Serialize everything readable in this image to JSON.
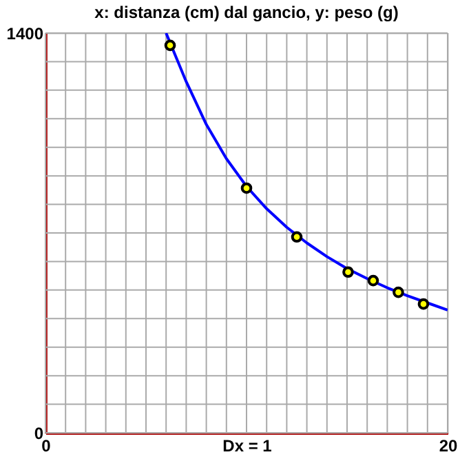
{
  "chart_data": {
    "type": "scatter",
    "title": "x:  distanza (cm) dal gancio,   y:  peso (g)",
    "xlabel": "Dx = 1",
    "xlim": [
      0,
      20
    ],
    "ylim": [
      0,
      1400
    ],
    "xticks": [
      0,
      {
        "value": 1,
        "label": null
      },
      {
        "value": 2,
        "label": null
      },
      {
        "value": 3,
        "label": null
      },
      {
        "value": 4,
        "label": null
      },
      {
        "value": 5,
        "label": null
      },
      {
        "value": 6,
        "label": null
      },
      {
        "value": 7,
        "label": null
      },
      {
        "value": 8,
        "label": null
      },
      {
        "value": 9,
        "label": null
      },
      {
        "value": 10,
        "label": null
      },
      {
        "value": 11,
        "label": null
      },
      {
        "value": 12,
        "label": null
      },
      {
        "value": 13,
        "label": null
      },
      {
        "value": 14,
        "label": null
      },
      {
        "value": 15,
        "label": null
      },
      {
        "value": 16,
        "label": null
      },
      {
        "value": 17,
        "label": null
      },
      {
        "value": 18,
        "label": null
      },
      {
        "value": 19,
        "label": null
      },
      20
    ],
    "yticks": [
      0,
      {
        "value": 100,
        "label": null
      },
      {
        "value": 200,
        "label": null
      },
      {
        "value": 300,
        "label": null
      },
      {
        "value": 400,
        "label": null
      },
      {
        "value": 500,
        "label": null
      },
      {
        "value": 600,
        "label": null
      },
      {
        "value": 700,
        "label": null
      },
      {
        "value": 800,
        "label": null
      },
      {
        "value": 900,
        "label": null
      },
      {
        "value": 1000,
        "label": null
      },
      {
        "value": 1100,
        "label": null
      },
      {
        "value": 1200,
        "label": null
      },
      {
        "value": 1300,
        "label": null
      },
      1400
    ],
    "grid": true,
    "series": [
      {
        "type": "line",
        "color": "#0000ff",
        "marker": "none",
        "line_style": "solid",
        "x": [
          6.0,
          7,
          8,
          9,
          10,
          11,
          12,
          13,
          14,
          15,
          16,
          17,
          18,
          19,
          20
        ],
        "values": [
          1400,
          1230,
          1080,
          960,
          863,
          785,
          720,
          665,
          617,
          575,
          540,
          508,
          480,
          455,
          430
        ]
      },
      {
        "type": "scatter",
        "color": "#ffff00",
        "marker": "circle",
        "x": [
          6.2,
          10,
          12.5,
          15.05,
          16.3,
          17.55,
          18.8
        ],
        "values": [
          1357,
          857,
          686,
          563,
          533,
          492,
          451
        ]
      }
    ]
  }
}
